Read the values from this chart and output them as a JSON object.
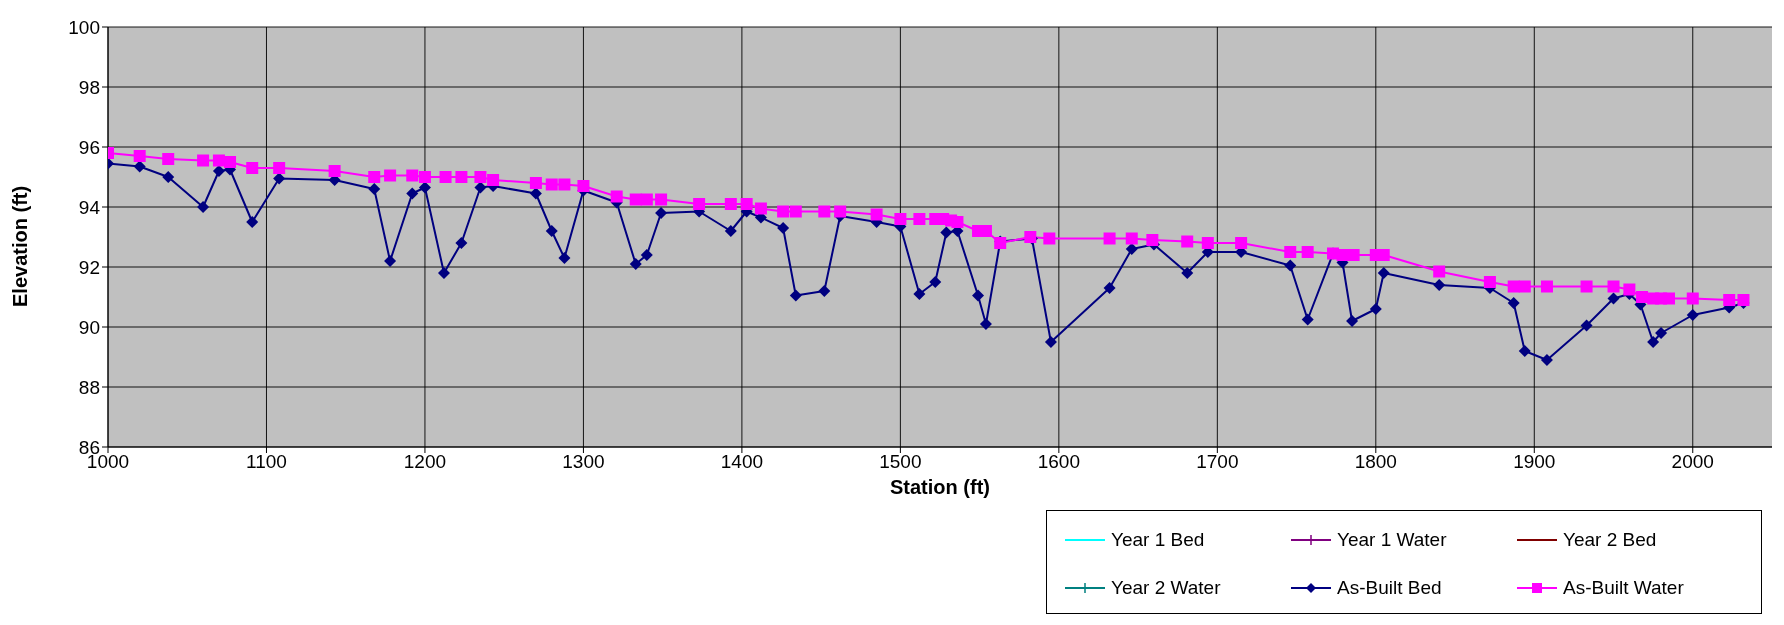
{
  "chart_data": {
    "type": "line",
    "xlabel": "Station (ft)",
    "ylabel": "Elevation (ft)",
    "xlim": [
      1000,
      2050
    ],
    "xticks": [
      1000,
      1100,
      1200,
      1300,
      1400,
      1500,
      1600,
      1700,
      1800,
      1900,
      2000
    ],
    "ylim": [
      86,
      100
    ],
    "yticks": [
      86,
      88,
      90,
      92,
      94,
      96,
      98,
      100
    ],
    "grid": true,
    "legend": "bottom right",
    "line_style": "solid",
    "series": [
      {
        "name": "Year 1 Bed",
        "color": "#00ffff",
        "marker": "none"
      },
      {
        "name": "Year 1 Water",
        "color": "#800080",
        "marker": "cross"
      },
      {
        "name": "Year 2 Bed",
        "color": "#800000",
        "marker": "none"
      },
      {
        "name": "Year 2 Water",
        "color": "#008080",
        "marker": "cross"
      },
      {
        "name": "As-Built Bed",
        "color": "#000080",
        "marker": "diamond",
        "x": [
          1000,
          1020,
          1038,
          1060,
          1070,
          1077,
          1091,
          1108,
          1143,
          1168,
          1178,
          1192,
          1200,
          1212,
          1223,
          1235,
          1243,
          1270,
          1280,
          1288,
          1300,
          1321,
          1333,
          1340,
          1349,
          1373,
          1393,
          1403,
          1412,
          1426,
          1434,
          1452,
          1462,
          1485,
          1500,
          1512,
          1522,
          1529,
          1536,
          1549,
          1554,
          1563,
          1583,
          1595,
          1632,
          1646,
          1660,
          1681,
          1694,
          1715,
          1746,
          1757,
          1773,
          1779,
          1785,
          1800,
          1805,
          1840,
          1872,
          1887,
          1894,
          1908,
          1933,
          1950,
          1960,
          1967,
          1975,
          1980,
          2000,
          2023,
          2032
        ],
        "values": [
          95.45,
          95.35,
          95.0,
          94.0,
          95.2,
          95.25,
          93.5,
          94.95,
          94.9,
          94.6,
          92.2,
          94.45,
          94.65,
          91.8,
          92.8,
          94.65,
          94.7,
          94.45,
          93.2,
          92.3,
          94.55,
          94.15,
          92.1,
          92.4,
          93.8,
          93.85,
          93.2,
          93.85,
          93.65,
          93.3,
          91.05,
          91.2,
          93.7,
          93.5,
          93.35,
          91.1,
          91.5,
          93.15,
          93.2,
          91.05,
          90.1,
          92.85,
          92.95,
          89.5,
          91.3,
          92.6,
          92.75,
          91.8,
          92.5,
          92.5,
          92.05,
          90.25,
          92.45,
          92.15,
          90.2,
          90.6,
          91.8,
          91.4,
          91.3,
          90.8,
          89.2,
          88.9,
          90.05,
          90.95,
          91.1,
          90.75,
          89.5,
          89.8,
          90.4,
          90.65,
          90.8
        ]
      },
      {
        "name": "As-Built Water",
        "color": "#ff00ff",
        "marker": "square",
        "x": [
          1000,
          1020,
          1038,
          1060,
          1070,
          1077,
          1091,
          1108,
          1143,
          1168,
          1178,
          1192,
          1200,
          1213,
          1223,
          1235,
          1243,
          1270,
          1280,
          1288,
          1300,
          1321,
          1333,
          1340,
          1349,
          1373,
          1393,
          1403,
          1412,
          1426,
          1434,
          1452,
          1462,
          1485,
          1500,
          1512,
          1522,
          1527,
          1532,
          1536,
          1549,
          1554,
          1563,
          1582,
          1594,
          1632,
          1646,
          1659,
          1681,
          1694,
          1715,
          1746,
          1757,
          1773,
          1779,
          1786,
          1800,
          1805,
          1840,
          1872,
          1887,
          1894,
          1908,
          1933,
          1950,
          1960,
          1968,
          1975,
          1980,
          1985,
          2000,
          2023,
          2032
        ],
        "values": [
          95.8,
          95.7,
          95.6,
          95.55,
          95.55,
          95.5,
          95.3,
          95.3,
          95.2,
          95.0,
          95.05,
          95.05,
          95.0,
          95.0,
          95.0,
          95.0,
          94.9,
          94.8,
          94.75,
          94.75,
          94.7,
          94.35,
          94.25,
          94.25,
          94.25,
          94.1,
          94.1,
          94.1,
          93.95,
          93.85,
          93.85,
          93.85,
          93.85,
          93.75,
          93.6,
          93.6,
          93.6,
          93.6,
          93.55,
          93.5,
          93.2,
          93.2,
          92.8,
          93.0,
          92.95,
          92.95,
          92.95,
          92.9,
          92.85,
          92.8,
          92.8,
          92.5,
          92.5,
          92.45,
          92.4,
          92.4,
          92.4,
          92.4,
          91.85,
          91.5,
          91.35,
          91.35,
          91.35,
          91.35,
          91.35,
          91.25,
          91.0,
          90.95,
          90.95,
          90.95,
          90.95,
          90.9,
          90.9
        ]
      }
    ]
  }
}
